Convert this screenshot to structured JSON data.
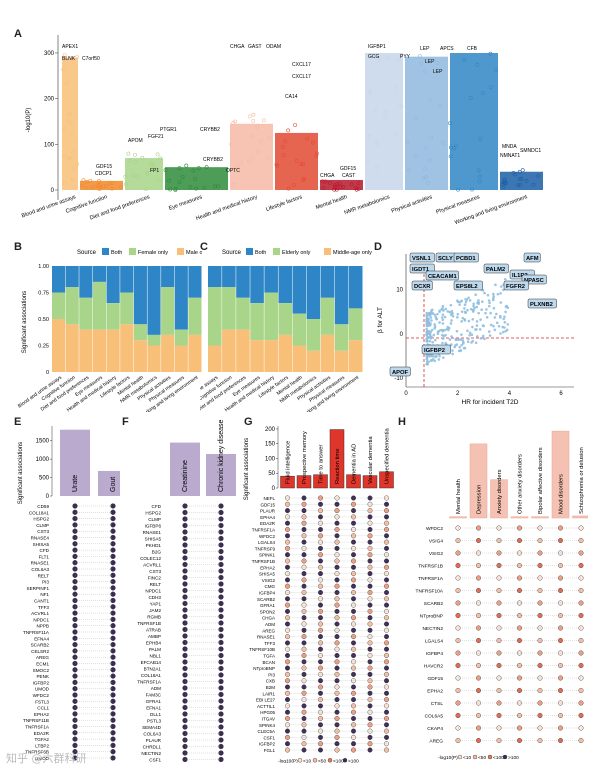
{
  "panels": {
    "A": {
      "letter": "A",
      "ylabel": "-log10(P)",
      "yticks": [
        "0",
        "100",
        "200",
        "300"
      ],
      "categories": [
        "Blood and urine assays",
        "Cognitive function",
        "Diet and food preferences",
        "Eye measures",
        "Health and medical history",
        "Lifestyle factors",
        "Mental health",
        "NMR metabolomics",
        "Physical activities",
        "Physical measures",
        "Working and living environment"
      ],
      "colors": [
        "#f8bf78",
        "#f08a2c",
        "#a8d58a",
        "#2e8b3a",
        "#f6b9a6",
        "#e24a33",
        "#b7192d",
        "#c6d6ea",
        "#8fb8de",
        "#2f86c6",
        "#1b5fa6"
      ],
      "labels": [
        "APEX1",
        "BLNK",
        "C7orf50",
        "CDCP1",
        "GDF15",
        "FGF21",
        "PTGR1",
        "APOM",
        "FP1",
        "CRYBB2",
        "CRYBB2",
        "OPTC",
        "CHGA",
        "GAST",
        "ODAM",
        "CXCL17",
        "CXCL17",
        "CA14",
        "GDF15",
        "CHGA",
        "CAST",
        "IGFBP1",
        "GCG",
        "PYY",
        "LEP",
        "LEP",
        "LEP",
        "APCS",
        "CFB",
        "MNDA",
        "NMNAT1",
        "SMNDC1"
      ]
    },
    "B": {
      "letter": "B",
      "legend_title": "Source",
      "legend": [
        "Both",
        "Female only",
        "Male only"
      ],
      "colors": [
        "#2f86c6",
        "#a8d58a",
        "#f8bf78"
      ],
      "ylabel": "Significant associations",
      "yticks": [
        "0",
        "0.25",
        "0.50",
        "0.75",
        "1.00"
      ],
      "categories": [
        "Blood and urine assays",
        "Cognitive function",
        "Diet and food preferences",
        "Eye measures",
        "Health and medical history",
        "Lifestyle factors",
        "Mental health",
        "NMR metabolomics",
        "Physical activities",
        "Physical measures",
        "Working and living environment"
      ]
    },
    "C": {
      "letter": "C",
      "legend_title": "Source",
      "legend": [
        "Both",
        "Elderly only",
        "Middle-age only"
      ],
      "colors": [
        "#2f86c6",
        "#a8d58a",
        "#f8bf78"
      ],
      "categories": [
        "Blood and urine assays",
        "Cognitive function",
        "Diet and food preferences",
        "Eye measures",
        "Health and medical history",
        "Lifestyle factors",
        "Mental health",
        "NMR metabolomics",
        "Physical activities",
        "Physical measures",
        "Working and living environment"
      ]
    },
    "D": {
      "letter": "D",
      "xlabel": "HR for incident T2D",
      "ylabel": "β for ALT",
      "xticks": [
        "0",
        "2",
        "4",
        "6"
      ],
      "yticks": [
        "-10",
        "0",
        "10"
      ],
      "labels": [
        "VSNL1",
        "SCLY",
        "PCBD1",
        "AFM",
        "IGDT1",
        "PALM2",
        "IL1R2",
        "CEACAM1",
        "NPASC",
        "DCXR",
        "EPS8L2",
        "FGFR2",
        "PLXNB2",
        "IGFBP2",
        "APOF"
      ]
    },
    "E": {
      "letter": "E",
      "ylabel": "Significant associations",
      "yticks": [
        "0",
        "500",
        "1000",
        "1500"
      ],
      "bars": [
        {
          "name": "Urate",
          "value": 1800
        },
        {
          "name": "Gout",
          "value": 680
        }
      ],
      "genes": [
        "CD59",
        "COL18A1",
        "HSPG2",
        "CLMP",
        "CST3",
        "RNASE4",
        "SHISA5",
        "CFD",
        "FLT1",
        "RNASE1",
        "COL6A3",
        "RELT",
        "PI3",
        "SERPINF1",
        "NF1",
        "CANT1",
        "TFF3",
        "ACVRL1",
        "NPDC1",
        "NPPB",
        "TNFRSF11A",
        "EFNA4",
        "SCARB2",
        "CELSR2",
        "AREG",
        "ECM1",
        "SMOC2",
        "PENK",
        "IGFBP2",
        "UMOD",
        "WFDC2",
        "FSTL3",
        "CCL1",
        "EPHA2",
        "TNFRSF11B",
        "TNFRSF1A",
        "EDA2R",
        "TGFA2",
        "LTBP2",
        "TNFRSF6B",
        "UMOD"
      ]
    },
    "F": {
      "letter": "F",
      "bars": [
        {
          "name": "Creatinine",
          "value": 1450
        },
        {
          "name": "Chronic kidney disease",
          "value": 1140
        }
      ],
      "genes": [
        "CFD",
        "HSPG2",
        "CLMP",
        "IGFBP6",
        "RNASE1",
        "SHISA5",
        "PKHD1",
        "B2G",
        "COLEC12",
        "ACVRL1",
        "CST3",
        "FINC2",
        "RELT",
        "NPDC1",
        "CDH3",
        "YAP1",
        "JAM2",
        "RGMB",
        "TNFRSF1B",
        "ATRAB",
        "AMBP",
        "EPHB4",
        "PALM",
        "NBL1",
        "EFCAB14",
        "BTN2A1",
        "COL18A1",
        "TNFRSF1A",
        "ADM",
        "FAM3C",
        "GFRA1",
        "EFNA1",
        "DLL1",
        "PSTL3",
        "SEMA4D",
        "COL6A3",
        "PLAUR",
        "CHRDL1",
        "NECTIN2",
        "CSF1"
      ]
    },
    "G": {
      "letter": "G",
      "ylabel": "Significant associations",
      "yticks": [
        "0",
        "50",
        "100",
        "150",
        "200"
      ],
      "bars": [
        {
          "name": "Fluid intelligence",
          "value": 40
        },
        {
          "name": "Prospective memory",
          "value": 42
        },
        {
          "name": "Time to answer",
          "value": 45
        },
        {
          "name": "Reaction time",
          "value": 198
        },
        {
          "name": "Dementia in AD",
          "value": 45
        },
        {
          "name": "Vascular dementia",
          "value": 42
        },
        {
          "name": "Unspecified dementia",
          "value": 55
        }
      ],
      "genes": [
        "NEFL",
        "GDF15",
        "PLAUR",
        "EPHA4",
        "EDA2R",
        "TNFRSF1A",
        "WFDC2",
        "LGALS4",
        "TNFRSF9",
        "SPINK1",
        "TNFRSF1B",
        "EPHA2",
        "SHISA5",
        "VSIG2",
        "CMG",
        "IGFBP4",
        "SCARB2",
        "GFRA1",
        "SPON2",
        "CHGA",
        "ADM",
        "AREG",
        "RNASE1",
        "TFF3",
        "TNFRSF10B",
        "TGFA",
        "BCAN",
        "NTproBNP",
        "PI3",
        "CXB",
        "B2M",
        "LAIR1",
        "EBI LE27",
        "ACTTIL1",
        "HPG05",
        "ITGAV",
        "SPINK4",
        "CLEC5A",
        "CSF1",
        "IGFBP2",
        "FGL1"
      ]
    },
    "H": {
      "letter": "H",
      "bars": [
        {
          "name": "Mental health",
          "value": 5
        },
        {
          "name": "Depression",
          "value": 290
        },
        {
          "name": "Anxiety disorders",
          "value": 150
        },
        {
          "name": "Other anxiety disorders",
          "value": 5
        },
        {
          "name": "Bipolar affective disorders",
          "value": 5
        },
        {
          "name": "Mood disorders",
          "value": 340
        },
        {
          "name": "Schizophrenia or delusion",
          "value": 8
        }
      ],
      "genes": [
        "WFDC2",
        "VSIG4",
        "VSIG2",
        "TNFRSF1B",
        "TNFRSF1A",
        "TNFRSF10A",
        "SCARB2",
        "NTproBNP",
        "NECTIN2",
        "LGALS4",
        "IGFBP4",
        "HAVCR2",
        "GDF15",
        "EPHA2",
        "CTSL",
        "COL6A5",
        "CKAP4",
        "AREG"
      ]
    }
  },
  "dot_legend": {
    "label": "-log10(P)",
    "items": [
      "<10",
      "<50",
      "<100",
      ">100"
    ]
  },
  "watermark": "知乎 @六群科研"
}
